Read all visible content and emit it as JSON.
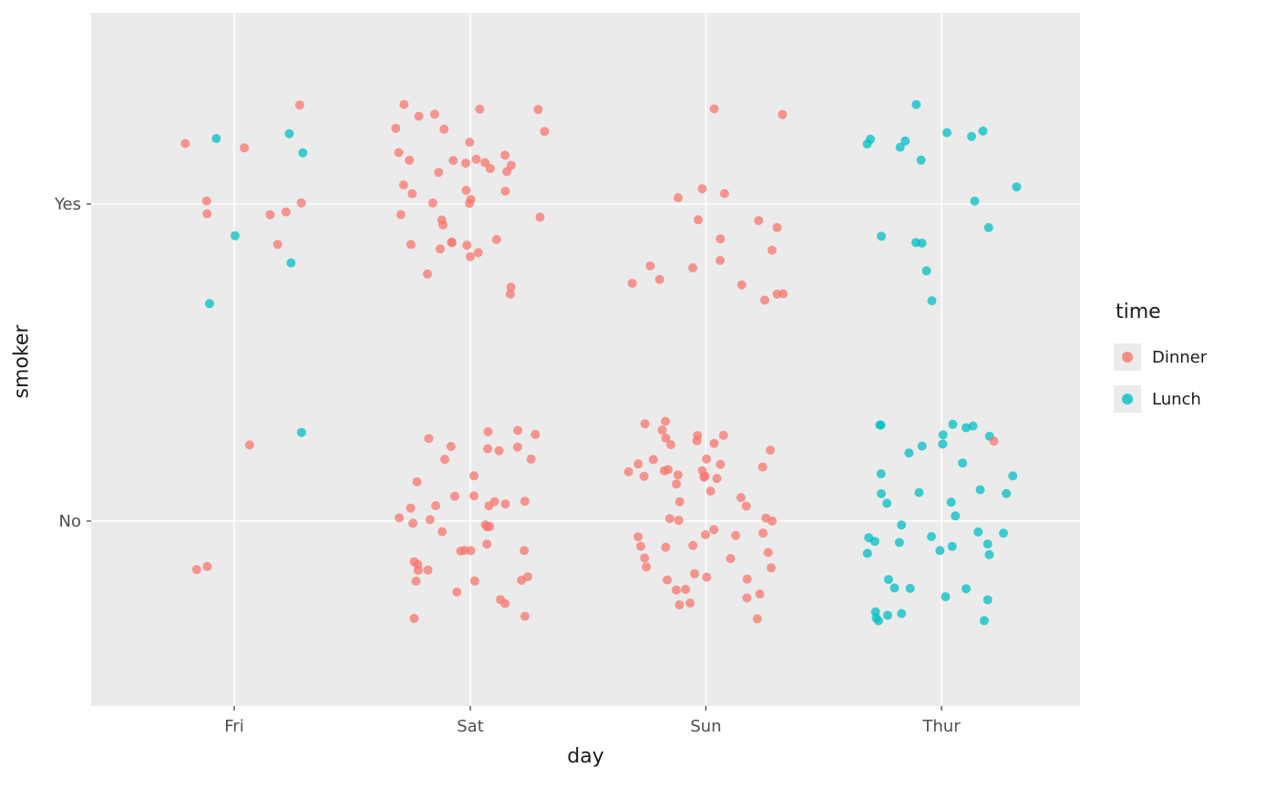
{
  "chart_data": {
    "type": "scatter",
    "subtype": "categorical-jitter",
    "title": "",
    "xlabel": "day",
    "ylabel": "smoker",
    "x_categories": [
      "Fri",
      "Sat",
      "Sun",
      "Thur"
    ],
    "y_categories": [
      "Yes",
      "No"
    ],
    "legend": {
      "title": "time",
      "position": "right",
      "entries": [
        "Dinner",
        "Lunch"
      ]
    },
    "colors": {
      "Dinner": "#F8766D",
      "Lunch": "#00BFC4",
      "panel_background": "#EBEBEB",
      "grid": "#FFFFFF",
      "tick_label": "#4D4D4D",
      "axis_title": "#1A1A1A"
    },
    "point_alpha": 0.75,
    "groups": [
      {
        "day": "Fri",
        "smoker": "Yes",
        "time": "Dinner",
        "count": 9
      },
      {
        "day": "Fri",
        "smoker": "Yes",
        "time": "Lunch",
        "count": 6
      },
      {
        "day": "Fri",
        "smoker": "No",
        "time": "Dinner",
        "count": 3
      },
      {
        "day": "Fri",
        "smoker": "No",
        "time": "Lunch",
        "count": 1
      },
      {
        "day": "Sat",
        "smoker": "Yes",
        "time": "Dinner",
        "count": 42
      },
      {
        "day": "Sat",
        "smoker": "No",
        "time": "Dinner",
        "count": 45
      },
      {
        "day": "Sun",
        "smoker": "Yes",
        "time": "Dinner",
        "count": 19
      },
      {
        "day": "Sun",
        "smoker": "No",
        "time": "Dinner",
        "count": 57
      },
      {
        "day": "Thur",
        "smoker": "Yes",
        "time": "Lunch",
        "count": 17
      },
      {
        "day": "Thur",
        "smoker": "No",
        "time": "Lunch",
        "count": 44
      },
      {
        "day": "Thur",
        "smoker": "No",
        "time": "Dinner",
        "count": 1
      }
    ]
  }
}
